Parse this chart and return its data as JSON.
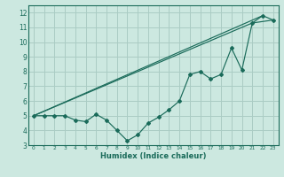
{
  "xlabel": "Humidex (Indice chaleur)",
  "bg_color": "#cce8e0",
  "grid_color": "#aaccC4",
  "line_color": "#1a6b5a",
  "xlim": [
    -0.5,
    23.5
  ],
  "ylim": [
    3,
    12.5
  ],
  "xticks": [
    0,
    1,
    2,
    3,
    4,
    5,
    6,
    7,
    8,
    9,
    10,
    11,
    12,
    13,
    14,
    15,
    16,
    17,
    18,
    19,
    20,
    21,
    22,
    23
  ],
  "yticks": [
    3,
    4,
    5,
    6,
    7,
    8,
    9,
    10,
    11,
    12
  ],
  "line1_x": [
    0,
    1,
    2,
    3,
    4,
    5,
    6,
    7,
    8,
    9,
    10,
    11,
    12,
    13,
    14,
    15,
    16,
    17,
    18,
    19,
    20,
    21,
    22,
    23
  ],
  "line1_y": [
    5.0,
    5.0,
    5.0,
    5.0,
    4.7,
    4.6,
    5.1,
    4.7,
    4.0,
    3.3,
    3.7,
    4.5,
    4.9,
    5.4,
    6.0,
    7.8,
    8.0,
    7.5,
    7.8,
    9.6,
    8.1,
    11.3,
    11.8,
    11.5
  ],
  "line2_x": [
    0,
    21,
    23
  ],
  "line2_y": [
    5.0,
    11.3,
    11.5
  ],
  "line3_x": [
    0,
    22
  ],
  "line3_y": [
    5.0,
    11.8
  ]
}
